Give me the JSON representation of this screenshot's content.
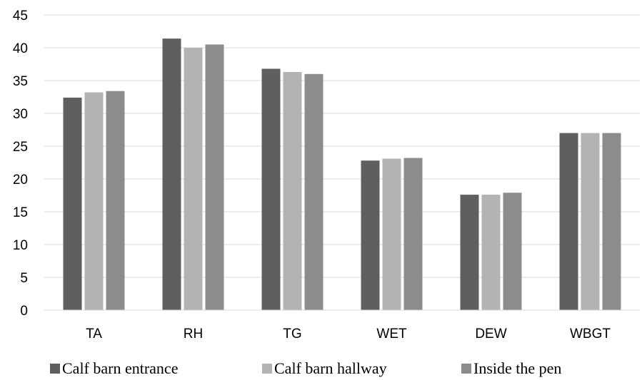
{
  "chart_data": {
    "type": "bar",
    "categories": [
      "TA",
      "RH",
      "TG",
      "WET",
      "DEW",
      "WBGT"
    ],
    "series": [
      {
        "name": "Calf barn entrance",
        "values": [
          32.4,
          41.4,
          36.8,
          22.8,
          17.6,
          27.0
        ],
        "color": "#5f5f5f"
      },
      {
        "name": "Calf barn hallway",
        "values": [
          33.2,
          40.0,
          36.3,
          23.1,
          17.6,
          27.0
        ],
        "color": "#b3b3b3"
      },
      {
        "name": "Inside the pen",
        "values": [
          33.4,
          40.5,
          36.0,
          23.2,
          17.9,
          27.0
        ],
        "color": "#8c8c8c"
      }
    ],
    "ylim": [
      0,
      45
    ],
    "yticks": [
      0,
      5,
      10,
      15,
      20,
      25,
      30,
      35,
      40,
      45
    ],
    "grid": true,
    "legend_position": "bottom",
    "title": "",
    "xlabel": "",
    "ylabel": ""
  }
}
